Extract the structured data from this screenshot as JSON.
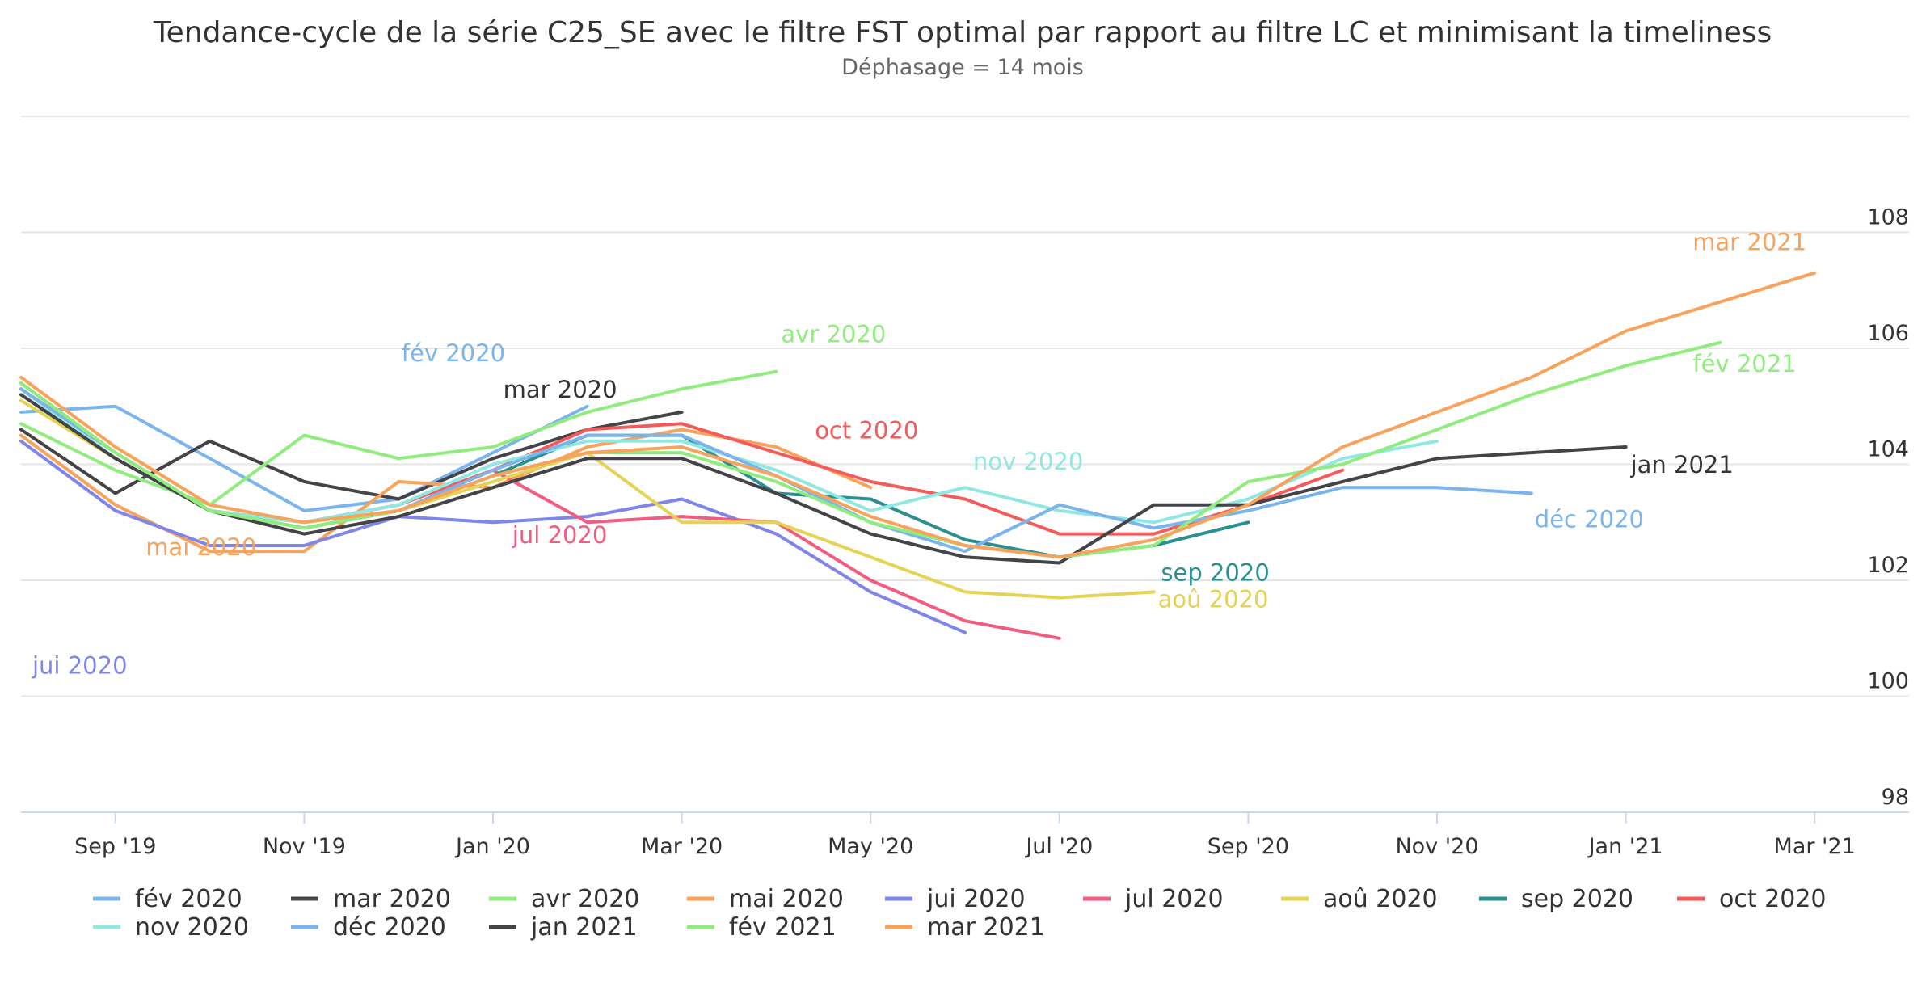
{
  "chart_data": {
    "type": "line",
    "title": "Tendance-cycle de la série C25_SE avec le filtre FST optimal par rapport au filtre LC et minimisant la timeliness",
    "subtitle": "Déphasage = 14 mois",
    "x_ticks": [
      "Sep '19",
      "Nov '19",
      "Jan '20",
      "Mar '20",
      "May '20",
      "Jul '20",
      "Sep '20",
      "Nov '20",
      "Jan '21",
      "Mar '21"
    ],
    "x_tick_dates": [
      "2019-09",
      "2019-11",
      "2020-01",
      "2020-03",
      "2020-05",
      "2020-07",
      "2020-09",
      "2020-11",
      "2021-01",
      "2021-03"
    ],
    "x_range": [
      "2019-08",
      "2021-04"
    ],
    "y_ticks": [
      98,
      100,
      102,
      104,
      106,
      108
    ],
    "ylim": [
      98,
      110
    ],
    "grid": true,
    "y_axis_side": "right",
    "legend_position": "bottom",
    "series": [
      {
        "name": "fév 2020",
        "color": "#7cb5ec",
        "label_color": "#7cb5ec",
        "x_start": "2019-08",
        "values": [
          104.9,
          105.0,
          104.1,
          103.2,
          103.4,
          104.2,
          105.0
        ]
      },
      {
        "name": "mar 2020",
        "color": "#434348",
        "label_color": "#333333",
        "x_start": "2019-08",
        "values": [
          104.6,
          103.5,
          104.4,
          103.7,
          103.4,
          104.1,
          104.6,
          104.9
        ]
      },
      {
        "name": "avr 2020",
        "color": "#90ed7d",
        "label_color": "#90ed7d",
        "x_start": "2019-08",
        "values": [
          104.7,
          103.9,
          103.3,
          104.5,
          104.1,
          104.3,
          104.9,
          105.3,
          105.6
        ]
      },
      {
        "name": "mai 2020",
        "color": "#f7a35c",
        "label_color": "#f7a35c",
        "x_start": "2019-08",
        "values": [
          104.5,
          103.3,
          102.5,
          102.5,
          103.7,
          103.6,
          104.3,
          104.6,
          104.3,
          103.6
        ]
      },
      {
        "name": "jui 2020",
        "color": "#8085e9",
        "label_color": "#8085e9",
        "x_start": "2019-08",
        "values": [
          104.4,
          103.2,
          102.6,
          102.6,
          103.1,
          103.0,
          103.1,
          103.4,
          102.8,
          101.8,
          101.1
        ]
      },
      {
        "name": "jul 2020",
        "color": "#f15c80",
        "label_color": "#f15c80",
        "x_start": "2019-08",
        "values": [
          105.3,
          104.1,
          103.2,
          103.0,
          103.3,
          103.9,
          103.0,
          103.1,
          103.0,
          102.0,
          101.3,
          101.0
        ]
      },
      {
        "name": "aoû 2020",
        "color": "#e4d354",
        "label_color": "#e4d354",
        "x_start": "2019-08",
        "values": [
          105.1,
          104.1,
          103.2,
          102.9,
          103.2,
          103.7,
          104.2,
          103.0,
          103.0,
          102.4,
          101.8,
          101.7,
          101.8
        ]
      },
      {
        "name": "sep 2020",
        "color": "#2b908f",
        "label_color": "#2b908f",
        "x_start": "2019-08",
        "values": [
          105.3,
          104.1,
          103.2,
          102.9,
          103.2,
          103.8,
          104.5,
          104.5,
          103.5,
          103.4,
          102.7,
          102.4,
          102.6,
          103.0
        ]
      },
      {
        "name": "oct 2020",
        "color": "#f45b5b",
        "label_color": "#f45b5b",
        "x_start": "2019-08",
        "values": [
          105.4,
          104.2,
          103.2,
          103.0,
          103.3,
          103.9,
          104.6,
          104.7,
          104.2,
          103.7,
          103.4,
          102.8,
          102.8,
          103.3,
          103.9
        ]
      },
      {
        "name": "nov 2020",
        "color": "#91e8e1",
        "label_color": "#91e8e1",
        "x_start": "2019-08",
        "values": [
          105.3,
          104.1,
          103.2,
          103.0,
          103.3,
          104.0,
          104.4,
          104.4,
          103.9,
          103.2,
          103.6,
          103.2,
          103.0,
          103.4,
          104.1,
          104.4
        ]
      },
      {
        "name": "déc 2020",
        "color": "#7cb5ec",
        "label_color": "#7cb5ec",
        "x_start": "2019-08",
        "values": [
          105.3,
          104.2,
          103.2,
          102.9,
          103.2,
          103.9,
          104.5,
          104.5,
          103.8,
          103.0,
          102.5,
          103.3,
          102.9,
          103.2,
          103.6,
          103.6,
          103.5
        ]
      },
      {
        "name": "jan 2021",
        "color": "#434348",
        "label_color": "#333333",
        "x_start": "2019-08",
        "values": [
          105.2,
          104.1,
          103.2,
          102.8,
          103.1,
          103.6,
          104.1,
          104.1,
          103.5,
          102.8,
          102.4,
          102.3,
          103.3,
          103.3,
          103.7,
          104.1,
          104.2,
          104.3
        ]
      },
      {
        "name": "fév 2021",
        "color": "#90ed7d",
        "label_color": "#90ed7d",
        "x_start": "2019-08",
        "values": [
          105.4,
          104.2,
          103.2,
          102.9,
          103.2,
          103.8,
          104.2,
          104.2,
          103.7,
          103.0,
          102.6,
          102.4,
          102.6,
          103.7,
          104.0,
          104.6,
          105.2,
          105.7,
          106.1
        ]
      },
      {
        "name": "mar 2021",
        "color": "#f7a35c",
        "label_color": "#f7a35c",
        "x_start": "2019-08",
        "values": [
          105.5,
          104.3,
          103.3,
          103.0,
          103.2,
          103.8,
          104.2,
          104.3,
          103.8,
          103.1,
          102.6,
          102.4,
          102.7,
          103.3,
          104.3,
          104.9,
          105.5,
          106.3,
          106.8,
          107.3
        ]
      }
    ]
  }
}
